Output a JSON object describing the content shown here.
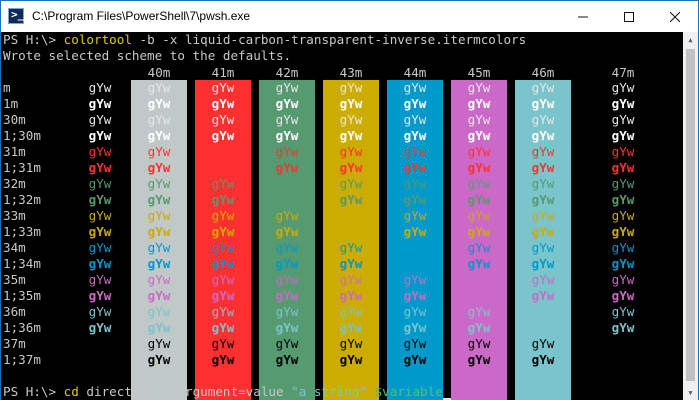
{
  "window": {
    "title": "C:\\Program Files\\PowerShell\\7\\pwsh.exe"
  },
  "terminal": {
    "prompt": "PS H:\\> ",
    "command1": "colortool",
    "command1_args": " -b -x liquid-carbon-transparent-inverse.itermcolors",
    "output_line": "Wrote selected scheme to the defaults.",
    "column_headers": [
      "40m",
      "41m",
      "42m",
      "43m",
      "44m",
      "45m",
      "46m",
      "47m"
    ],
    "row_labels": [
      "m",
      "1m",
      "30m",
      "1;30m",
      "31m",
      "1;31m",
      "32m",
      "1;32m",
      "33m",
      "1;33m",
      "34m",
      "1;34m",
      "35m",
      "1;35m",
      "36m",
      "1;36m",
      "37m",
      "1;37m"
    ],
    "sample_text": "gYw",
    "command2_prompt": "PS H:\\> ",
    "command2": "cd",
    "command2_args": " directory --argument=value ",
    "command2_string": "\"a string\"",
    "command2_variable": " $variable"
  },
  "colors": {
    "background": "#000000",
    "foreground": "#c8c8c8",
    "prompt_command": "#e0c800",
    "bg_bands": [
      "#000000",
      "#c0c8c8",
      "#ff3030",
      "#559a70",
      "#ccac00",
      "#0099cc",
      "#cc69c8",
      "#7ac4cc",
      "#000000"
    ],
    "fg_rows": [
      "#e6e6e6",
      "#ffffff",
      "#e6e6e6",
      "#ffffff",
      "#ff3030",
      "#ff3030",
      "#559a70",
      "#559a70",
      "#ccac00",
      "#ccac00",
      "#0099cc",
      "#0099cc",
      "#cc69c8",
      "#cc69c8",
      "#7ac4cc",
      "#7ac4cc",
      "#000000",
      "#000000"
    ]
  },
  "scrollbar": {
    "up_icon": "triangle-up",
    "down_icon": "triangle-down"
  }
}
